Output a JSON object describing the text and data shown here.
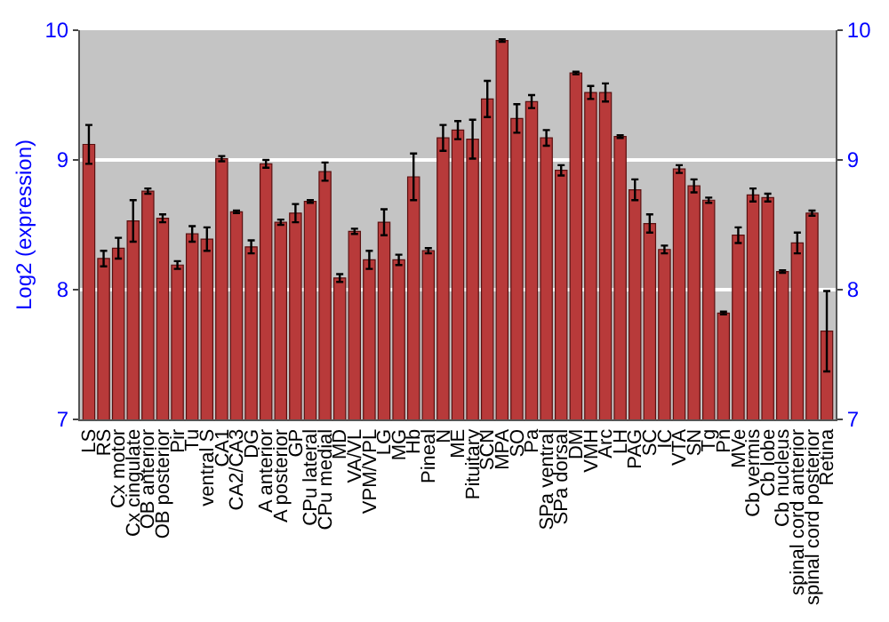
{
  "chart_data": {
    "type": "bar",
    "ylabel": "Log2 (expression)",
    "categories": [
      "LS",
      "RS",
      "Cx motor",
      "Cx cingulate",
      "OB anterior",
      "OB posterior",
      "Pir",
      "Tu",
      "ventral S",
      "CA1",
      "CA2/CA3",
      "DG",
      "A anterior",
      "A posterior",
      "GP",
      "CPu lateral",
      "CPu medial",
      "MD",
      "VA/VL",
      "VPM/VPL",
      "LG",
      "MG",
      "Hb",
      "Pineal",
      "N",
      "ME",
      "Pituitary",
      "SCN",
      "MPA",
      "SO",
      "Pa",
      "SPa ventral",
      "SPa dorsal",
      "DM",
      "VMH",
      "Arc",
      "LH",
      "PAG",
      "SC",
      "IC",
      "VTA",
      "SN",
      "Tg",
      "Pn",
      "MVe",
      "Cb vermis",
      "Cb lobe",
      "Cb nucleus",
      "spinal cord anterior",
      "spinal cord posterior",
      "Retina"
    ],
    "values": [
      9.12,
      8.24,
      8.32,
      8.53,
      8.76,
      8.55,
      8.19,
      8.43,
      8.39,
      9.01,
      8.6,
      8.33,
      8.97,
      8.52,
      8.59,
      8.68,
      8.91,
      8.09,
      8.45,
      8.23,
      8.52,
      8.23,
      8.87,
      8.3,
      9.17,
      9.23,
      9.16,
      9.47,
      9.92,
      9.32,
      9.45,
      9.17,
      8.92,
      9.67,
      9.52,
      9.52,
      9.18,
      8.77,
      8.51,
      8.31,
      8.93,
      8.8,
      8.69,
      7.82,
      8.42,
      8.73,
      8.71,
      8.14,
      8.36,
      8.59,
      7.68
    ],
    "errors": [
      0.15,
      0.06,
      0.08,
      0.16,
      0.02,
      0.03,
      0.03,
      0.06,
      0.09,
      0.02,
      0.01,
      0.05,
      0.03,
      0.02,
      0.07,
      0.01,
      0.07,
      0.03,
      0.02,
      0.07,
      0.1,
      0.04,
      0.18,
      0.02,
      0.1,
      0.07,
      0.15,
      0.14,
      0.01,
      0.11,
      0.05,
      0.06,
      0.04,
      0.01,
      0.05,
      0.07,
      0.01,
      0.08,
      0.07,
      0.03,
      0.03,
      0.05,
      0.02,
      0.01,
      0.06,
      0.05,
      0.03,
      0.01,
      0.08,
      0.02,
      0.31
    ],
    "color": "#b83a3a",
    "ylim": [
      7,
      10
    ],
    "yticks": [
      7,
      8,
      9,
      10
    ],
    "y2lim": [
      7,
      10
    ],
    "y2ticks": [
      7,
      8,
      9,
      10
    ],
    "grid": "y"
  }
}
